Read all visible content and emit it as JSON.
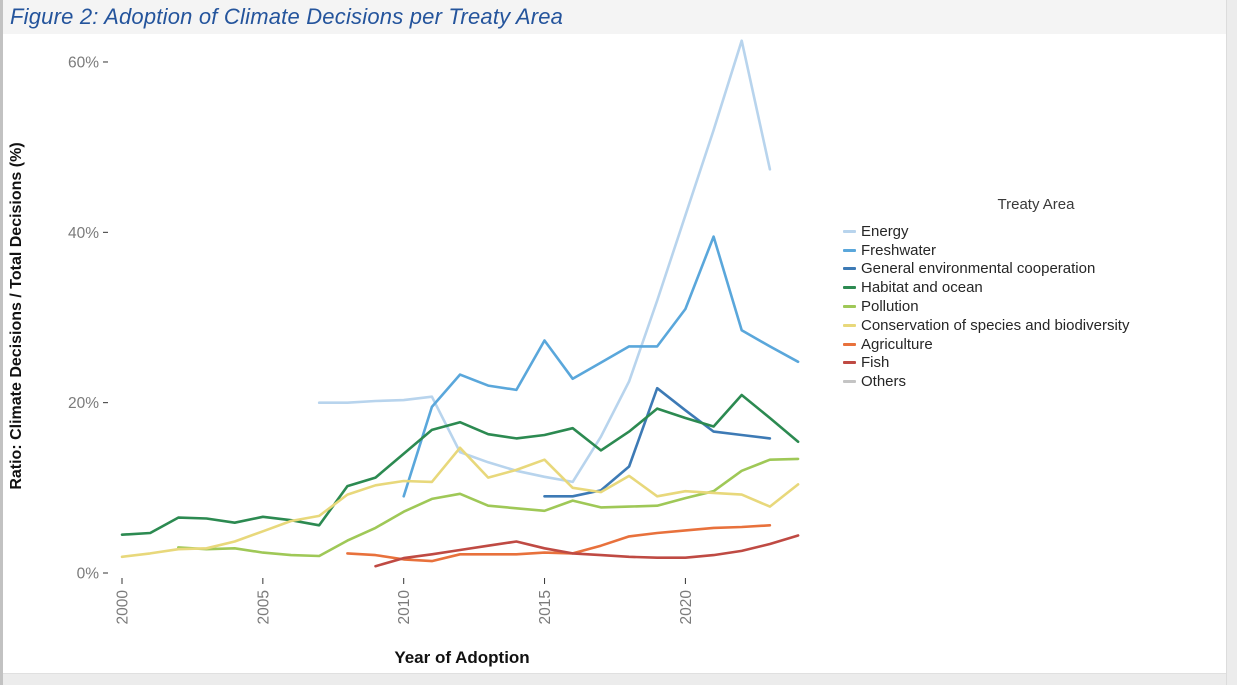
{
  "title": "Figure 2: Adoption of Climate Decisions per Treaty Area",
  "colors": {
    "title_text": "#24549c",
    "tick_label": "#7b7b7b",
    "tick_mark": "#333333",
    "axis_title": "#111111",
    "page_edge": "#ececec"
  },
  "chart_data": {
    "type": "line",
    "title": "Figure 2: Adoption of Climate Decisions per Treaty Area",
    "xlabel": "Year of Adoption",
    "ylabel": "Ratio: Climate Decisions / Total Decisions (%)",
    "legend_title": "Treaty Area",
    "legend_position": "right",
    "grid": false,
    "xlim": [
      1999.5,
      2024.5
    ],
    "ylim": [
      0,
      63
    ],
    "x_ticks": [
      2000,
      2005,
      2010,
      2015,
      2020
    ],
    "y_ticks": [
      {
        "label": "0%",
        "value": 0
      },
      {
        "label": "20%",
        "value": 20
      },
      {
        "label": "40%",
        "value": 40
      },
      {
        "label": "60%",
        "value": 60
      }
    ],
    "series": [
      {
        "name": "Energy",
        "slug": "energy",
        "color": "#b8d4ed",
        "points": [
          [
            2007,
            20
          ],
          [
            2008,
            20
          ],
          [
            2009,
            20.2
          ],
          [
            2010,
            20.3
          ],
          [
            2011,
            20.7
          ],
          [
            2012,
            14.2
          ],
          [
            2013,
            13
          ],
          [
            2014,
            12
          ],
          [
            2015,
            11.3
          ],
          [
            2016,
            10.7
          ],
          [
            2017,
            16
          ],
          [
            2018,
            22.5
          ],
          [
            2019,
            32
          ],
          [
            2020,
            42
          ],
          [
            2021,
            52
          ],
          [
            2022,
            62.5
          ],
          [
            2023,
            47.4
          ]
        ]
      },
      {
        "name": "Freshwater",
        "slug": "freshwater",
        "color": "#5aa7db",
        "points": [
          [
            2010,
            9
          ],
          [
            2011,
            19.5
          ],
          [
            2012,
            23.3
          ],
          [
            2013,
            22
          ],
          [
            2014,
            21.5
          ],
          [
            2015,
            27.3
          ],
          [
            2016,
            22.8
          ],
          [
            2017,
            24.7
          ],
          [
            2018,
            26.6
          ],
          [
            2019,
            26.6
          ],
          [
            2020,
            31
          ],
          [
            2021,
            39.5
          ],
          [
            2022,
            28.5
          ],
          [
            2023,
            26.6
          ],
          [
            2024,
            24.8
          ]
        ]
      },
      {
        "name": "General environmental cooperation",
        "slug": "general-environmental-cooperation",
        "color": "#3d7ab5",
        "points": [
          [
            2015,
            9
          ],
          [
            2016,
            9
          ],
          [
            2017,
            9.7
          ],
          [
            2018,
            12.5
          ],
          [
            2019,
            21.7
          ],
          [
            2020,
            19.1
          ],
          [
            2021,
            16.6
          ],
          [
            2022,
            16.2
          ],
          [
            2023,
            15.8
          ]
        ]
      },
      {
        "name": "Habitat and ocean",
        "slug": "habitat-and-ocean",
        "color": "#2c8a51",
        "points": [
          [
            2000,
            4.5
          ],
          [
            2001,
            4.7
          ],
          [
            2002,
            6.5
          ],
          [
            2003,
            6.4
          ],
          [
            2004,
            5.9
          ],
          [
            2005,
            6.6
          ],
          [
            2006,
            6.2
          ],
          [
            2007,
            5.6
          ],
          [
            2008,
            10.2
          ],
          [
            2009,
            11.2
          ],
          [
            2010,
            14
          ],
          [
            2011,
            16.8
          ],
          [
            2012,
            17.7
          ],
          [
            2013,
            16.3
          ],
          [
            2014,
            15.8
          ],
          [
            2015,
            16.2
          ],
          [
            2016,
            17
          ],
          [
            2017,
            14.4
          ],
          [
            2018,
            16.6
          ],
          [
            2019,
            19.3
          ],
          [
            2020,
            18.2
          ],
          [
            2021,
            17.2
          ],
          [
            2022,
            20.9
          ],
          [
            2023,
            18.2
          ],
          [
            2024,
            15.4
          ]
        ]
      },
      {
        "name": "Pollution",
        "slug": "pollution",
        "color": "#9fc857",
        "points": [
          [
            2002,
            3
          ],
          [
            2003,
            2.8
          ],
          [
            2004,
            2.9
          ],
          [
            2005,
            2.4
          ],
          [
            2006,
            2.1
          ],
          [
            2007,
            2
          ],
          [
            2008,
            3.8
          ],
          [
            2009,
            5.3
          ],
          [
            2010,
            7.2
          ],
          [
            2011,
            8.7
          ],
          [
            2012,
            9.3
          ],
          [
            2013,
            7.9
          ],
          [
            2014,
            7.6
          ],
          [
            2015,
            7.3
          ],
          [
            2016,
            8.5
          ],
          [
            2017,
            7.7
          ],
          [
            2018,
            7.8
          ],
          [
            2019,
            7.9
          ],
          [
            2020,
            8.8
          ],
          [
            2021,
            9.6
          ],
          [
            2022,
            12
          ],
          [
            2023,
            13.3
          ],
          [
            2024,
            13.4
          ]
        ]
      },
      {
        "name": "Conservation of species and biodiversity",
        "slug": "conservation-of-species-and-biodiversity",
        "color": "#e8d87b",
        "points": [
          [
            2000,
            1.9
          ],
          [
            2001,
            2.3
          ],
          [
            2002,
            2.8
          ],
          [
            2003,
            2.9
          ],
          [
            2004,
            3.7
          ],
          [
            2005,
            4.9
          ],
          [
            2006,
            6.1
          ],
          [
            2007,
            6.7
          ],
          [
            2008,
            9.2
          ],
          [
            2009,
            10.3
          ],
          [
            2010,
            10.8
          ],
          [
            2011,
            10.7
          ],
          [
            2012,
            14.7
          ],
          [
            2013,
            11.2
          ],
          [
            2014,
            12.1
          ],
          [
            2015,
            13.3
          ],
          [
            2016,
            10
          ],
          [
            2017,
            9.5
          ],
          [
            2018,
            11.4
          ],
          [
            2019,
            9
          ],
          [
            2020,
            9.6
          ],
          [
            2021,
            9.4
          ],
          [
            2022,
            9.2
          ],
          [
            2023,
            7.8
          ],
          [
            2024,
            10.4
          ]
        ]
      },
      {
        "name": "Agriculture",
        "slug": "agriculture",
        "color": "#e8713c",
        "points": [
          [
            2008,
            2.3
          ],
          [
            2009,
            2.1
          ],
          [
            2010,
            1.6
          ],
          [
            2011,
            1.4
          ],
          [
            2012,
            2.2
          ],
          [
            2013,
            2.2
          ],
          [
            2014,
            2.2
          ],
          [
            2015,
            2.4
          ],
          [
            2016,
            2.3
          ],
          [
            2017,
            3.2
          ],
          [
            2018,
            4.3
          ],
          [
            2019,
            4.7
          ],
          [
            2020,
            5
          ],
          [
            2021,
            5.3
          ],
          [
            2022,
            5.4
          ],
          [
            2023,
            5.6
          ]
        ]
      },
      {
        "name": "Fish",
        "slug": "fish",
        "color": "#bf4a43",
        "points": [
          [
            2009,
            0.8
          ],
          [
            2010,
            1.75
          ],
          [
            2011,
            2.2
          ],
          [
            2012,
            2.7
          ],
          [
            2013,
            3.2
          ],
          [
            2014,
            3.7
          ],
          [
            2015,
            2.9
          ],
          [
            2016,
            2.3
          ],
          [
            2017,
            2.1
          ],
          [
            2018,
            1.9
          ],
          [
            2019,
            1.8
          ],
          [
            2020,
            1.8
          ],
          [
            2021,
            2.1
          ],
          [
            2022,
            2.6
          ],
          [
            2023,
            3.4
          ],
          [
            2024,
            4.4
          ]
        ]
      },
      {
        "name": "Others",
        "slug": "others",
        "color": "#c4c4c4",
        "points": []
      }
    ]
  }
}
